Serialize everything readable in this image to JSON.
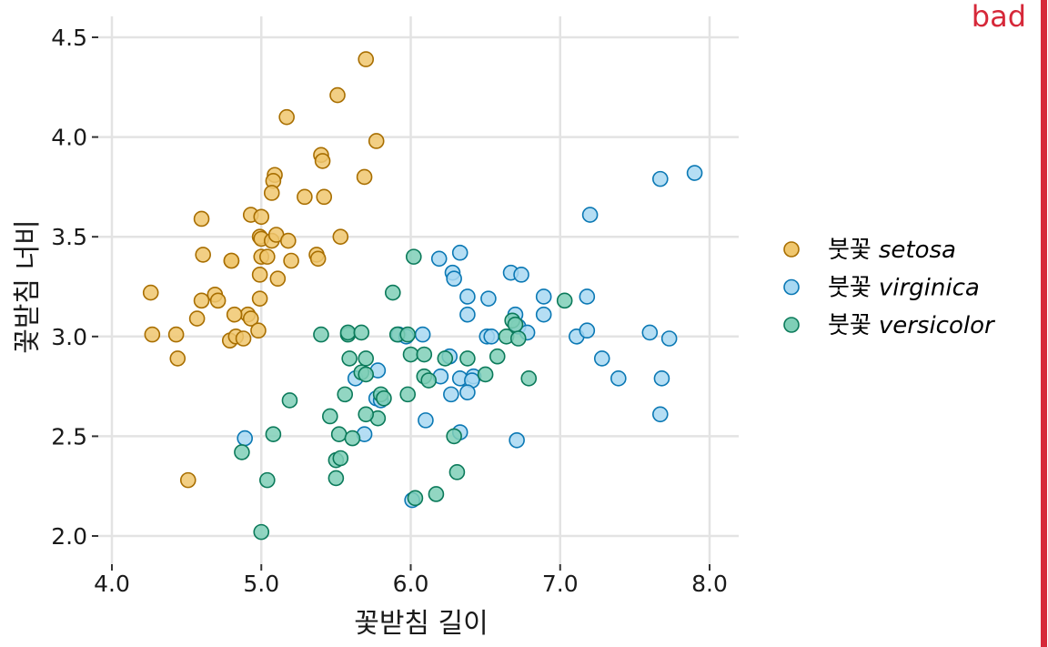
{
  "chart_data": {
    "type": "scatter",
    "xlabel": "꽃받침 길이",
    "ylabel": "꽃받침 너비",
    "xlim": [
      3.9,
      8.2
    ],
    "ylim": [
      1.86,
      4.6
    ],
    "xticks": [
      "4.0",
      "5.0",
      "6.0",
      "7.0",
      "8.0"
    ],
    "xtick_values": [
      4,
      5,
      6,
      7,
      8
    ],
    "yticks": [
      "2.0",
      "2.5",
      "3.0",
      "3.5",
      "4.0",
      "4.5"
    ],
    "ytick_values": [
      2,
      2.5,
      3,
      3.5,
      4,
      4.5
    ],
    "grid": true,
    "legend_position": "right",
    "series": [
      {
        "name": "setosa",
        "legend_prefix": "붓꽃",
        "fill": "#f0c76e",
        "stroke": "#a86e00",
        "points": [
          [
            5.7,
            4.39
          ],
          [
            5.51,
            4.21
          ],
          [
            5.17,
            4.1
          ],
          [
            5.77,
            3.98
          ],
          [
            5.4,
            3.91
          ],
          [
            5.41,
            3.88
          ],
          [
            5.09,
            3.81
          ],
          [
            5.08,
            3.78
          ],
          [
            5.07,
            3.72
          ],
          [
            5.29,
            3.7
          ],
          [
            5.42,
            3.7
          ],
          [
            5.69,
            3.8
          ],
          [
            4.6,
            3.59
          ],
          [
            4.93,
            3.61
          ],
          [
            5.0,
            3.6
          ],
          [
            4.99,
            3.5
          ],
          [
            5.0,
            3.49
          ],
          [
            5.07,
            3.48
          ],
          [
            5.1,
            3.51
          ],
          [
            5.18,
            3.48
          ],
          [
            5.53,
            3.5
          ],
          [
            4.61,
            3.41
          ],
          [
            4.8,
            3.38
          ],
          [
            4.8,
            3.38
          ],
          [
            5.0,
            3.4
          ],
          [
            5.04,
            3.4
          ],
          [
            5.11,
            3.29
          ],
          [
            5.2,
            3.38
          ],
          [
            5.37,
            3.41
          ],
          [
            5.38,
            3.39
          ],
          [
            4.99,
            3.31
          ],
          [
            4.99,
            3.19
          ],
          [
            4.26,
            3.22
          ],
          [
            4.6,
            3.18
          ],
          [
            4.69,
            3.21
          ],
          [
            4.71,
            3.18
          ],
          [
            4.57,
            3.09
          ],
          [
            4.91,
            3.11
          ],
          [
            4.93,
            3.09
          ],
          [
            4.82,
            3.11
          ],
          [
            4.98,
            3.03
          ],
          [
            4.79,
            2.98
          ],
          [
            4.83,
            3.0
          ],
          [
            4.88,
            2.99
          ],
          [
            4.27,
            3.01
          ],
          [
            4.43,
            3.01
          ],
          [
            4.44,
            2.89
          ],
          [
            4.51,
            2.28
          ]
        ]
      },
      {
        "name": "virginica",
        "legend_prefix": "붓꽃",
        "fill": "#a8d8f2",
        "stroke": "#0a78b4",
        "points": [
          [
            7.9,
            3.82
          ],
          [
            7.67,
            3.79
          ],
          [
            7.2,
            3.61
          ],
          [
            6.33,
            3.42
          ],
          [
            6.19,
            3.39
          ],
          [
            6.28,
            3.32
          ],
          [
            6.29,
            3.29
          ],
          [
            6.67,
            3.32
          ],
          [
            6.74,
            3.31
          ],
          [
            6.52,
            3.19
          ],
          [
            6.38,
            3.2
          ],
          [
            6.38,
            3.11
          ],
          [
            6.7,
            3.11
          ],
          [
            6.72,
            3.05
          ],
          [
            6.89,
            3.2
          ],
          [
            7.18,
            3.2
          ],
          [
            6.89,
            3.11
          ],
          [
            5.92,
            3.01
          ],
          [
            5.97,
            3.0
          ],
          [
            6.08,
            3.01
          ],
          [
            6.51,
            3.0
          ],
          [
            6.54,
            3.0
          ],
          [
            6.78,
            3.02
          ],
          [
            7.11,
            3.0
          ],
          [
            7.18,
            3.03
          ],
          [
            7.6,
            3.02
          ],
          [
            7.73,
            2.99
          ],
          [
            7.28,
            2.89
          ],
          [
            7.39,
            2.79
          ],
          [
            7.68,
            2.79
          ],
          [
            5.78,
            2.83
          ],
          [
            5.77,
            2.69
          ],
          [
            5.8,
            2.68
          ],
          [
            5.63,
            2.79
          ],
          [
            5.69,
            2.51
          ],
          [
            6.2,
            2.8
          ],
          [
            6.26,
            2.9
          ],
          [
            6.33,
            2.79
          ],
          [
            6.42,
            2.8
          ],
          [
            6.41,
            2.78
          ],
          [
            6.38,
            2.72
          ],
          [
            6.27,
            2.71
          ],
          [
            6.1,
            2.58
          ],
          [
            6.33,
            2.52
          ],
          [
            6.71,
            2.48
          ],
          [
            7.67,
            2.61
          ],
          [
            4.89,
            2.49
          ],
          [
            6.01,
            2.18
          ]
        ]
      },
      {
        "name": "versicolor",
        "legend_prefix": "붓꽃",
        "fill": "#7fcfb7",
        "stroke": "#0b7a5a",
        "points": [
          [
            6.02,
            3.4
          ],
          [
            5.88,
            3.22
          ],
          [
            7.03,
            3.18
          ],
          [
            5.4,
            3.01
          ],
          [
            5.58,
            3.01
          ],
          [
            5.58,
            3.02
          ],
          [
            5.67,
            3.02
          ],
          [
            5.91,
            3.01
          ],
          [
            5.98,
            3.01
          ],
          [
            6.68,
            3.08
          ],
          [
            6.7,
            3.06
          ],
          [
            6.64,
            3.0
          ],
          [
            6.72,
            2.99
          ],
          [
            6.58,
            2.9
          ],
          [
            6.0,
            2.91
          ],
          [
            6.09,
            2.91
          ],
          [
            6.23,
            2.89
          ],
          [
            6.38,
            2.89
          ],
          [
            6.5,
            2.81
          ],
          [
            6.79,
            2.79
          ],
          [
            5.59,
            2.89
          ],
          [
            5.7,
            2.89
          ],
          [
            5.67,
            2.82
          ],
          [
            5.7,
            2.81
          ],
          [
            5.56,
            2.71
          ],
          [
            5.8,
            2.71
          ],
          [
            5.82,
            2.69
          ],
          [
            5.78,
            2.59
          ],
          [
            5.7,
            2.61
          ],
          [
            5.98,
            2.71
          ],
          [
            6.09,
            2.8
          ],
          [
            6.12,
            2.78
          ],
          [
            5.46,
            2.6
          ],
          [
            5.52,
            2.51
          ],
          [
            5.61,
            2.49
          ],
          [
            5.08,
            2.51
          ],
          [
            5.19,
            2.68
          ],
          [
            4.87,
            2.42
          ],
          [
            5.5,
            2.38
          ],
          [
            5.53,
            2.39
          ],
          [
            5.5,
            2.29
          ],
          [
            5.04,
            2.28
          ],
          [
            6.03,
            2.19
          ],
          [
            6.17,
            2.21
          ],
          [
            6.31,
            2.32
          ],
          [
            6.29,
            2.5
          ],
          [
            5.0,
            2.02
          ]
        ]
      }
    ]
  },
  "annotation": {
    "label": "bad",
    "color": "#d62839"
  }
}
